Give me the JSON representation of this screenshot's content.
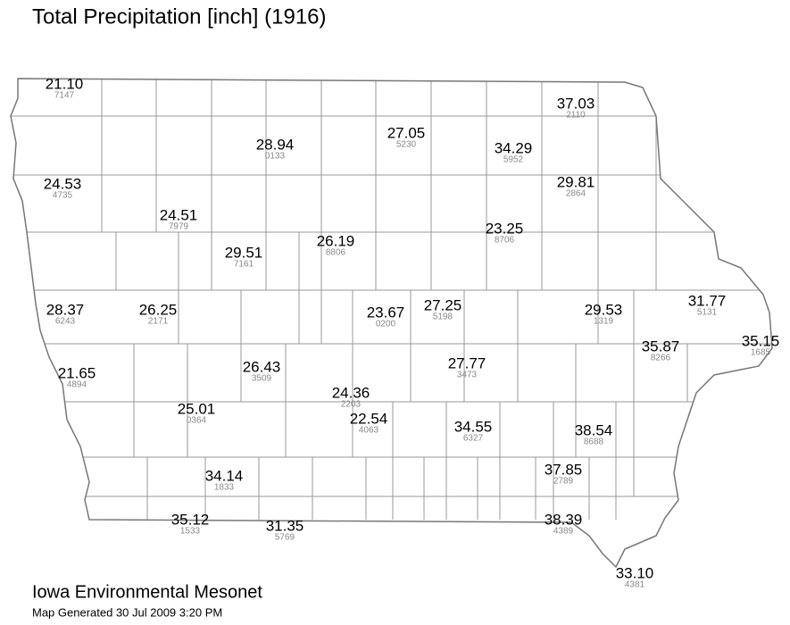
{
  "title": "Total Precipitation [inch] (1916)",
  "footer": {
    "organization": "Iowa Environmental Mesonet",
    "generated": "Map Generated 30 Jul 2009 3:20 PM"
  },
  "stations": [
    {
      "value": "21.10",
      "id": "7147"
    },
    {
      "value": "28.94",
      "id": "0133"
    },
    {
      "value": "27.05",
      "id": "5230"
    },
    {
      "value": "34.29",
      "id": "5952"
    },
    {
      "value": "37.03",
      "id": "2110"
    },
    {
      "value": "29.81",
      "id": "2864"
    },
    {
      "value": "24.53",
      "id": "4735"
    },
    {
      "value": "24.51",
      "id": "7979"
    },
    {
      "value": "29.51",
      "id": "7161"
    },
    {
      "value": "26.19",
      "id": "8806"
    },
    {
      "value": "23.25",
      "id": "8706"
    },
    {
      "value": "28.37",
      "id": "6243"
    },
    {
      "value": "26.25",
      "id": "2171"
    },
    {
      "value": "23.67",
      "id": "0200"
    },
    {
      "value": "27.25",
      "id": "5198"
    },
    {
      "value": "29.53",
      "id": "1319"
    },
    {
      "value": "31.77",
      "id": "5131"
    },
    {
      "value": "35.87",
      "id": "8266"
    },
    {
      "value": "35.15",
      "id": "1685"
    },
    {
      "value": "21.65",
      "id": "4894"
    },
    {
      "value": "26.43",
      "id": "3509"
    },
    {
      "value": "27.77",
      "id": "3473"
    },
    {
      "value": "24.36",
      "id": "2203"
    },
    {
      "value": "25.01",
      "id": "0364"
    },
    {
      "value": "22.54",
      "id": "4063"
    },
    {
      "value": "34.55",
      "id": "6327"
    },
    {
      "value": "38.54",
      "id": "8688"
    },
    {
      "value": "34.14",
      "id": "1833"
    },
    {
      "value": "37.85",
      "id": "2789"
    },
    {
      "value": "35.12",
      "id": "1533"
    },
    {
      "value": "31.35",
      "id": "5769"
    },
    {
      "value": "38.39",
      "id": "4389"
    },
    {
      "value": "33.10",
      "id": "4381"
    }
  ]
}
